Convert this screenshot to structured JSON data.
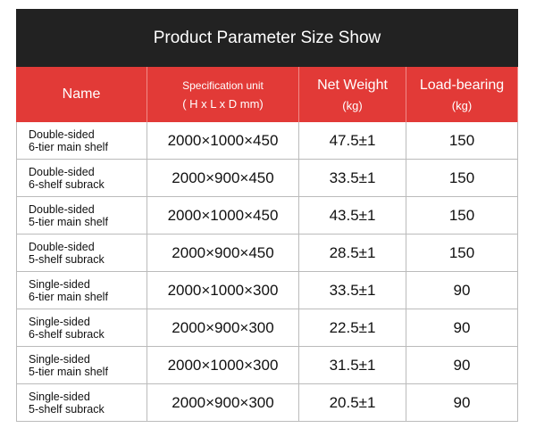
{
  "header": {
    "title": "Product Parameter Size Show"
  },
  "table": {
    "columns": [
      [
        "Name"
      ],
      [
        "Specification unit",
        "( H x L x D mm)"
      ],
      [
        "Net Weight",
        "(kg)"
      ],
      [
        "Load-bearing",
        "(kg)"
      ]
    ],
    "rows": [
      [
        [
          "Double-sided",
          "6-tier main shelf"
        ],
        "2000×1000×450",
        "47.5±1",
        "150"
      ],
      [
        [
          "Double-sided",
          "6-shelf subrack"
        ],
        "2000×900×450",
        "33.5±1",
        "150"
      ],
      [
        [
          "Double-sided",
          "5-tier main shelf"
        ],
        "2000×1000×450",
        "43.5±1",
        "150"
      ],
      [
        [
          "Double-sided",
          "5-shelf subrack"
        ],
        "2000×900×450",
        "28.5±1",
        "150"
      ],
      [
        [
          "Single-sided",
          "6-tier main shelf"
        ],
        "2000×1000×300",
        "33.5±1",
        "90"
      ],
      [
        [
          "Single-sided",
          "6-shelf subrack"
        ],
        "2000×900×300",
        "22.5±1",
        "90"
      ],
      [
        [
          "Single-sided",
          "5-tier main shelf"
        ],
        "2000×1000×300",
        "31.5±1",
        "90"
      ],
      [
        [
          "Single-sided",
          "5-shelf subrack"
        ],
        "2000×900×300",
        "20.5±1",
        "90"
      ]
    ]
  }
}
